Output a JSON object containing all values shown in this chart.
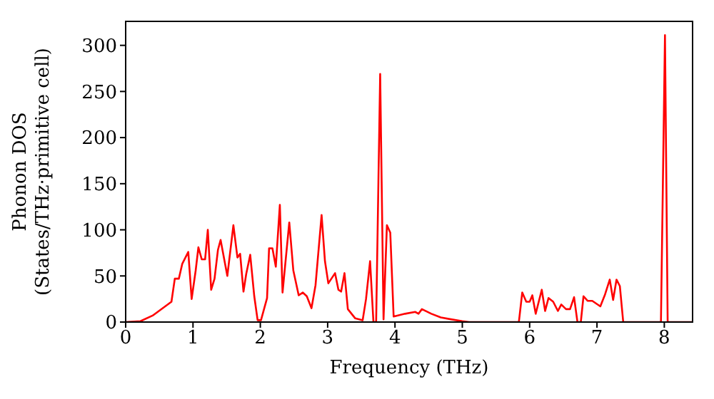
{
  "chart_data": {
    "type": "line",
    "xlabel": "Frequency (THz)",
    "ylabel": "Phonon DOS\n(States/THz·primitive cell)",
    "xlim": [
      0,
      8.42
    ],
    "ylim": [
      0,
      326
    ],
    "xticks": [
      0,
      1,
      2,
      3,
      4,
      5,
      6,
      7,
      8
    ],
    "yticks": [
      0,
      50,
      100,
      150,
      200,
      250,
      300
    ],
    "marker": "none",
    "line_style": "solid",
    "series": [
      {
        "color": "#ff0000",
        "x": [
          0,
          0.22,
          0.4,
          0.68,
          0.73,
          0.79,
          0.84,
          0.93,
          0.98,
          1.04,
          1.08,
          1.13,
          1.18,
          1.22,
          1.27,
          1.32,
          1.37,
          1.41,
          1.51,
          1.6,
          1.66,
          1.7,
          1.75,
          1.79,
          1.85,
          1.91,
          1.96,
          2.01,
          2.1,
          2.13,
          2.18,
          2.23,
          2.29,
          2.33,
          2.43,
          2.49,
          2.57,
          2.63,
          2.69,
          2.76,
          2.82,
          2.91,
          2.96,
          3.01,
          3.11,
          3.16,
          3.2,
          3.25,
          3.3,
          3.41,
          3.52,
          3.57,
          3.63,
          3.68,
          3.72,
          3.78,
          3.83,
          3.88,
          3.93,
          3.98,
          4.15,
          4.3,
          4.35,
          4.4,
          4.54,
          4.68,
          4.83,
          5.0,
          5.1,
          5.84,
          5.89,
          5.95,
          6.0,
          6.04,
          6.09,
          6.18,
          6.23,
          6.28,
          6.35,
          6.42,
          6.47,
          6.54,
          6.6,
          6.66,
          6.71,
          6.76,
          6.8,
          6.86,
          6.93,
          7.05,
          7.12,
          7.19,
          7.24,
          7.29,
          7.34,
          7.39,
          7.95,
          8.01,
          8.05,
          8.42
        ],
        "values": [
          0,
          1,
          7,
          22,
          47,
          47,
          63,
          76,
          25,
          56,
          81,
          68,
          68,
          100,
          35,
          47,
          78,
          89,
          50,
          105,
          70,
          74,
          33,
          52,
          73,
          28,
          2,
          2,
          26,
          80,
          80,
          60,
          127,
          32,
          108,
          56,
          29,
          32,
          28,
          15,
          40,
          116,
          66,
          42,
          53,
          35,
          33,
          53,
          14,
          4,
          2,
          25,
          66,
          0,
          0,
          269,
          3,
          105,
          97,
          6,
          9,
          11,
          9,
          14,
          9,
          5,
          3,
          1,
          0,
          0,
          32,
          22,
          22,
          29,
          9,
          35,
          12,
          26,
          22,
          12,
          19,
          14,
          14,
          27,
          0,
          0,
          28,
          23,
          23,
          17,
          30,
          46,
          24,
          46,
          39,
          0,
          0,
          311,
          0,
          0
        ]
      }
    ]
  }
}
